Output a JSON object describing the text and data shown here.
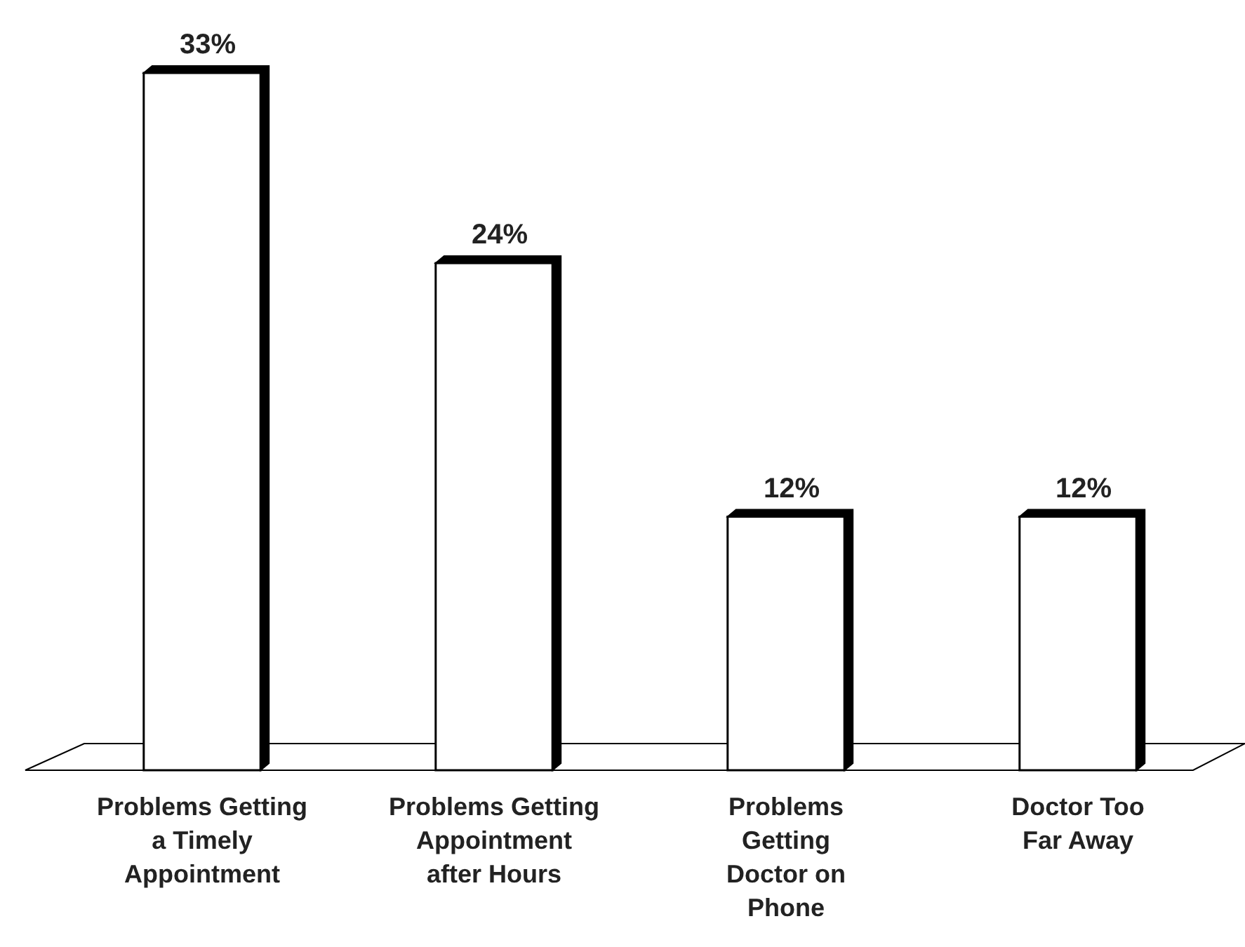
{
  "chart_data": {
    "type": "bar",
    "categories": [
      "Problems Getting a Timely Appointment",
      "Problems Getting Appointment after Hours",
      "Problems Getting Doctor on Phone",
      "Doctor Too Far Away"
    ],
    "values": [
      33,
      24,
      12,
      12
    ],
    "color": "#ffffff",
    "value_labels": [
      "33%",
      "24%",
      "12%",
      "12%"
    ],
    "legend": false
  }
}
